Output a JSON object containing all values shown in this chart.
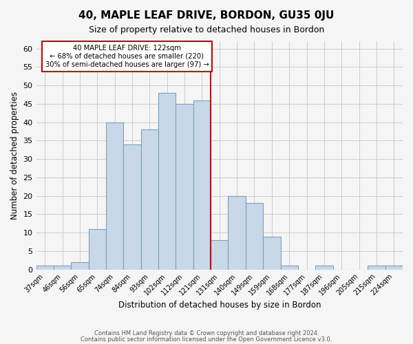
{
  "title": "40, MAPLE LEAF DRIVE, BORDON, GU35 0JU",
  "subtitle": "Size of property relative to detached houses in Bordon",
  "xlabel": "Distribution of detached houses by size in Bordon",
  "ylabel": "Number of detached properties",
  "footer_line1": "Contains HM Land Registry data © Crown copyright and database right 2024.",
  "footer_line2": "Contains public sector information licensed under the Open Government Licence v3.0.",
  "bin_labels": [
    "37sqm",
    "46sqm",
    "56sqm",
    "65sqm",
    "74sqm",
    "84sqm",
    "93sqm",
    "102sqm",
    "112sqm",
    "121sqm",
    "131sqm",
    "140sqm",
    "149sqm",
    "159sqm",
    "168sqm",
    "177sqm",
    "187sqm",
    "196sqm",
    "205sqm",
    "215sqm",
    "224sqm"
  ],
  "bar_values": [
    1,
    1,
    2,
    11,
    40,
    34,
    38,
    48,
    45,
    46,
    8,
    20,
    18,
    9,
    1,
    0,
    1,
    0,
    0,
    1,
    1
  ],
  "bar_color": "#c8d8e8",
  "bar_edge_color": "#7aa0bc",
  "property_line_x": 9.5,
  "property_line_label": "40 MAPLE LEAF DRIVE: 122sqm",
  "annotation_line1": "← 68% of detached houses are smaller (220)",
  "annotation_line2": "30% of semi-detached houses are larger (97) →",
  "annotation_box_color": "#ffffff",
  "annotation_box_edge": "#cc0000",
  "line_color": "#cc0000",
  "ylim": [
    0,
    62
  ],
  "yticks": [
    0,
    5,
    10,
    15,
    20,
    25,
    30,
    35,
    40,
    45,
    50,
    55,
    60
  ],
  "grid_color": "#cccccc",
  "background_color": "#f5f5f5"
}
